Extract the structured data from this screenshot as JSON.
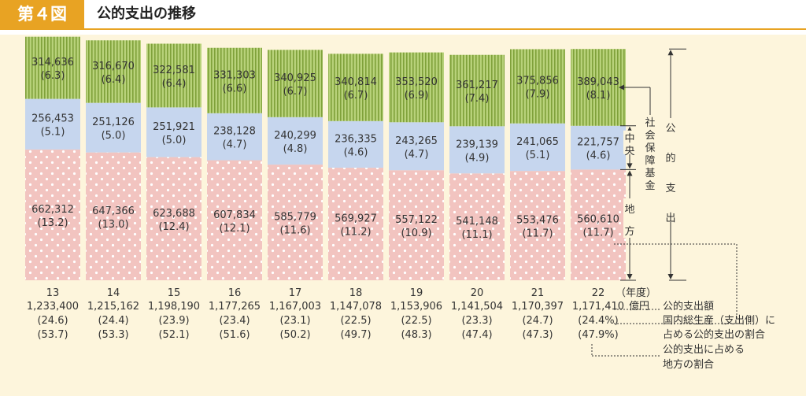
{
  "header": {
    "figure_label": "第４図",
    "title": "公的支出の推移"
  },
  "chart_data": {
    "type": "bar",
    "stacked": true,
    "categories": [
      "13",
      "14",
      "15",
      "16",
      "17",
      "18",
      "19",
      "20",
      "21",
      "22"
    ],
    "category_suffix_last": "（年度）",
    "series": [
      {
        "name": "地方",
        "color": "#f2c4c0",
        "values": [
          662312,
          647366,
          623688,
          607834,
          585779,
          569927,
          557122,
          541148,
          553476,
          560610
        ],
        "labels": [
          "662,312",
          "647,366",
          "623,688",
          "607,834",
          "585,779",
          "569,927",
          "557,122",
          "541,148",
          "553,476",
          "560,610"
        ],
        "shares": [
          "(13.2)",
          "(13.0)",
          "(12.4)",
          "(12.1)",
          "(11.6)",
          "(11.2)",
          "(10.9)",
          "(11.1)",
          "(11.7)",
          "(11.7)"
        ]
      },
      {
        "name": "中央",
        "color": "#c6d6ee",
        "values": [
          256453,
          251126,
          251921,
          238128,
          240299,
          236335,
          243265,
          239139,
          241065,
          221757
        ],
        "labels": [
          "256,453",
          "251,126",
          "251,921",
          "238,128",
          "240,299",
          "236,335",
          "243,265",
          "239,139",
          "241,065",
          "221,757"
        ],
        "shares": [
          "(5.1)",
          "(5.0)",
          "(5.0)",
          "(4.7)",
          "(4.8)",
          "(4.6)",
          "(4.7)",
          "(4.9)",
          "(5.1)",
          "(4.6)"
        ]
      },
      {
        "name": "社会保障基金",
        "color": "#b8d27a",
        "values": [
          314636,
          316670,
          322581,
          331303,
          340925,
          340814,
          353520,
          361217,
          375856,
          389043
        ],
        "labels": [
          "314,636",
          "316,670",
          "322,581",
          "331,303",
          "340,925",
          "340,814",
          "353,520",
          "361,217",
          "375,856",
          "389,043"
        ],
        "shares": [
          "(6.3)",
          "(6.4)",
          "(6.4)",
          "(6.6)",
          "(6.7)",
          "(6.7)",
          "(6.9)",
          "(7.4)",
          "(7.9)",
          "(8.1)"
        ]
      }
    ],
    "totals": [
      "1,233,400",
      "1,215,162",
      "1,198,190",
      "1,177,265",
      "1,167,003",
      "1,147,078",
      "1,153,906",
      "1,141,504",
      "1,170,397",
      "1,171,410"
    ],
    "totals_unit": "億円",
    "gdp_share": [
      "(24.6)",
      "(24.4)",
      "(23.9)",
      "(23.4)",
      "(23.1)",
      "(22.5)",
      "(22.5)",
      "(23.3)",
      "(24.7)",
      "(24.4%)"
    ],
    "local_share": [
      "(53.7)",
      "(53.3)",
      "(52.1)",
      "(51.6)",
      "(50.2)",
      "(49.7)",
      "(48.3)",
      "(47.4)",
      "(47.3)",
      "(47.9%)"
    ],
    "bracket_total_label": "公的支出",
    "legend_notes": [
      "公的支出額",
      "国内総生産（支出側）に",
      "占める公的支出の割合",
      "公的支出に占める",
      "地方の割合"
    ]
  }
}
